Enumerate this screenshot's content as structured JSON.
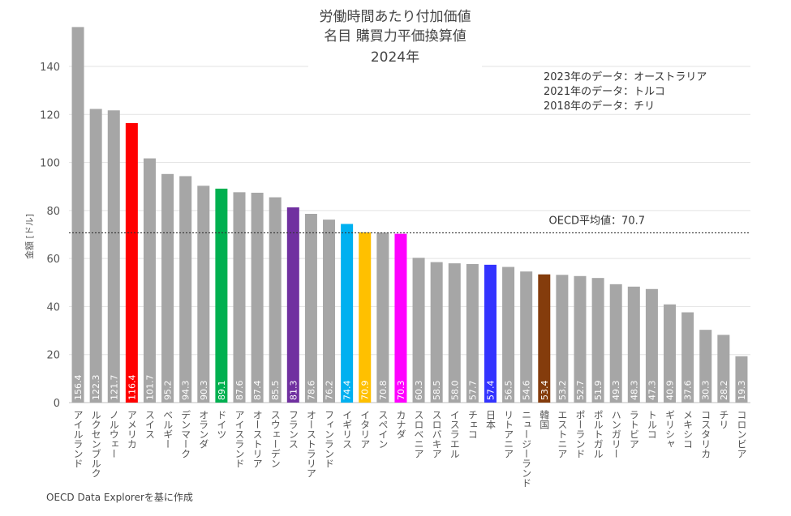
{
  "chart_data": {
    "type": "bar",
    "title_lines": [
      "労働時間あたり付加価値",
      "名目 購買力平価換算値",
      "2024年"
    ],
    "ylabel": "金額 [ドル]",
    "ylim": [
      0,
      160
    ],
    "yticks": [
      0,
      20,
      40,
      60,
      80,
      100,
      120,
      140
    ],
    "grid": true,
    "categories": [
      "アイルランド",
      "ルクセンブルク",
      "ノルウェー",
      "アメリカ",
      "スイス",
      "ベルギー",
      "デンマーク",
      "オランダ",
      "ドイツ",
      "アイスランド",
      "オーストリア",
      "スウェーデン",
      "フランス",
      "オーストラリア",
      "フィンランド",
      "イギリス",
      "イタリア",
      "スペイン",
      "カナダ",
      "スロベニア",
      "スロバキア",
      "イスラエル",
      "チェコ",
      "日本",
      "リトアニア",
      "ニュージーランド",
      "韓国",
      "エストニア",
      "ポーランド",
      "ポルトガル",
      "ハンガリー",
      "ラトビア",
      "トルコ",
      "ギリシャ",
      "メキシコ",
      "コスタリカ",
      "チリ",
      "コロンビア"
    ],
    "values": [
      156.4,
      122.3,
      121.7,
      116.4,
      101.7,
      95.2,
      94.3,
      90.3,
      89.1,
      87.6,
      87.4,
      85.5,
      81.3,
      78.6,
      76.2,
      74.4,
      70.9,
      70.8,
      70.3,
      60.3,
      58.5,
      58.0,
      57.7,
      57.4,
      56.5,
      54.6,
      53.4,
      53.2,
      52.7,
      51.9,
      49.3,
      48.3,
      47.3,
      40.9,
      37.6,
      30.3,
      28.2,
      19.3
    ],
    "labels": [
      "156.4",
      "122.3",
      "121.7",
      "116.4",
      "101.7",
      "95.2",
      "94.3",
      "90.3",
      "89.1",
      "87.6",
      "87.4",
      "85.5",
      "81.3",
      "78.6",
      "76.2",
      "74.4",
      "70.9",
      "70.8",
      "70.3",
      "60.3",
      "58.5",
      "58.0",
      "57.7",
      "57.4",
      "56.5",
      "54.6",
      "53.4",
      "53.2",
      "52.7",
      "51.9",
      "49.3",
      "48.3",
      "47.3",
      "40.9",
      "37.6",
      "30.3",
      "28.2",
      "19.3"
    ],
    "colors": [
      "#a6a6a6",
      "#a6a6a6",
      "#a6a6a6",
      "#ff0000",
      "#a6a6a6",
      "#a6a6a6",
      "#a6a6a6",
      "#a6a6a6",
      "#00b050",
      "#a6a6a6",
      "#a6a6a6",
      "#a6a6a6",
      "#7030a0",
      "#a6a6a6",
      "#a6a6a6",
      "#00b0f0",
      "#ffc000",
      "#a6a6a6",
      "#ff00ff",
      "#a6a6a6",
      "#a6a6a6",
      "#a6a6a6",
      "#a6a6a6",
      "#3333ff",
      "#a6a6a6",
      "#a6a6a6",
      "#843c0c",
      "#a6a6a6",
      "#a6a6a6",
      "#a6a6a6",
      "#a6a6a6",
      "#a6a6a6",
      "#a6a6a6",
      "#a6a6a6",
      "#a6a6a6",
      "#a6a6a6",
      "#a6a6a6",
      "#a6a6a6"
    ],
    "reference_line": {
      "value": 70.7,
      "label": "OECD平均値：70.7"
    },
    "notes": [
      "2023年のデータ：オーストラリア",
      "2021年のデータ：トルコ",
      "2018年のデータ：チリ"
    ],
    "source": "OECD Data Explorerを基に作成"
  }
}
